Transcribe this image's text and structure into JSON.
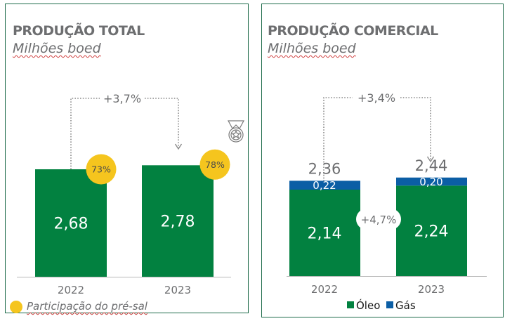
{
  "chart_data": [
    {
      "type": "bar",
      "title": "PRODUÇÃO TOTAL",
      "subtitle": "Milhões boed",
      "categories": [
        "2022",
        "2023"
      ],
      "values": [
        2.68,
        2.78
      ],
      "value_labels": [
        "2,68",
        "2,78"
      ],
      "presal_share": [
        "73%",
        "78%"
      ],
      "change_label": "+3,7%",
      "legend": "Participação do pré-sal",
      "ylim": [
        0,
        3
      ],
      "colors": {
        "bar": "#028140",
        "presal": "#f5c51e",
        "text": "#6d6e70"
      }
    },
    {
      "type": "bar",
      "stacked": true,
      "title": "PRODUÇÃO COMERCIAL",
      "subtitle": "Milhões boed",
      "categories": [
        "2022",
        "2023"
      ],
      "series": [
        {
          "name": "Óleo",
          "values": [
            2.14,
            2.24
          ],
          "labels": [
            "2,14",
            "2,24"
          ],
          "color": "#028140"
        },
        {
          "name": "Gás",
          "values": [
            0.22,
            0.2
          ],
          "labels": [
            "0,22",
            "0,20"
          ],
          "color": "#0b5ea5"
        }
      ],
      "totals": [
        "2,36",
        "2,44"
      ],
      "change_label": "+3,4%",
      "oil_change_label": "+4,7%",
      "ylim": [
        0,
        3
      ]
    }
  ]
}
